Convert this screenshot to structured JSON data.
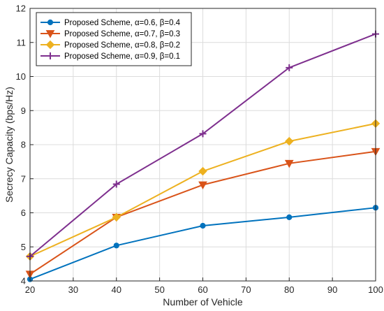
{
  "chart_data": {
    "type": "line",
    "xlabel": "Number of Vehicle",
    "ylabel": "Secrecy Capacity (bps/Hz)",
    "xlim": [
      20,
      100
    ],
    "ylim": [
      4,
      12
    ],
    "xticks": [
      20,
      30,
      40,
      50,
      60,
      70,
      80,
      90,
      100
    ],
    "yticks": [
      4,
      5,
      6,
      7,
      8,
      9,
      10,
      11,
      12
    ],
    "grid": true,
    "legend_position": "top-left",
    "x": [
      20,
      40,
      60,
      80,
      100
    ],
    "series": [
      {
        "name": "Proposed Scheme, α=0.6, β=0.4",
        "color": "#0072BD",
        "marker": "circle",
        "values": [
          4.05,
          5.04,
          5.62,
          5.87,
          6.15
        ]
      },
      {
        "name": "Proposed Scheme, α=0.7, β=0.3",
        "color": "#D95319",
        "marker": "triangle-down",
        "values": [
          4.2,
          5.87,
          6.82,
          7.45,
          7.8
        ]
      },
      {
        "name": "Proposed Scheme, α=0.8, β=0.2",
        "color": "#EDB120",
        "marker": "diamond",
        "values": [
          4.72,
          5.87,
          7.22,
          8.1,
          8.62
        ]
      },
      {
        "name": "Proposed Scheme, α=0.9, β=0.1",
        "color": "#7E2F8E",
        "marker": "plus",
        "values": [
          4.72,
          6.84,
          8.32,
          10.26,
          11.25
        ]
      }
    ]
  }
}
